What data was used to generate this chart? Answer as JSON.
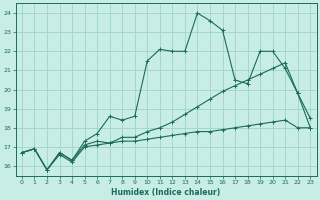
{
  "xlabel": "Humidex (Indice chaleur)",
  "bg_color": "#c8ece6",
  "grid_color": "#9dd4cc",
  "line_color": "#1a6b5a",
  "xlim": [
    -0.5,
    23.5
  ],
  "ylim": [
    15.5,
    24.5
  ],
  "xticks": [
    0,
    1,
    2,
    3,
    4,
    5,
    6,
    7,
    8,
    9,
    10,
    11,
    12,
    13,
    14,
    15,
    16,
    17,
    18,
    19,
    20,
    21,
    22,
    23
  ],
  "yticks": [
    16,
    17,
    18,
    19,
    20,
    21,
    22,
    23,
    24
  ],
  "line1_x": [
    0,
    1,
    2,
    3,
    4,
    5,
    6,
    7,
    8,
    9,
    10,
    11,
    12,
    13,
    14,
    15,
    16,
    17,
    18,
    19,
    20,
    21,
    22,
    23
  ],
  "line1_y": [
    16.7,
    16.9,
    15.8,
    16.7,
    16.3,
    17.3,
    17.7,
    18.6,
    18.4,
    18.6,
    21.5,
    22.1,
    22.0,
    22.0,
    24.0,
    23.6,
    23.1,
    20.5,
    20.3,
    22.0,
    22.0,
    21.1,
    19.8,
    18.5
  ],
  "line2_x": [
    0,
    1,
    2,
    3,
    4,
    5,
    6,
    7,
    8,
    9,
    10,
    11,
    12,
    13,
    14,
    15,
    16,
    17,
    18,
    19,
    20,
    21,
    22,
    23
  ],
  "line2_y": [
    16.7,
    16.9,
    15.8,
    16.7,
    16.3,
    17.1,
    17.3,
    17.2,
    17.5,
    17.5,
    17.8,
    18.0,
    18.3,
    18.7,
    19.1,
    19.5,
    19.9,
    20.2,
    20.5,
    20.8,
    21.1,
    21.4,
    19.8,
    18.0
  ],
  "line3_x": [
    0,
    1,
    2,
    3,
    4,
    5,
    6,
    7,
    8,
    9,
    10,
    11,
    12,
    13,
    14,
    15,
    16,
    17,
    18,
    19,
    20,
    21,
    22,
    23
  ],
  "line3_y": [
    16.7,
    16.9,
    15.8,
    16.6,
    16.2,
    17.0,
    17.1,
    17.2,
    17.3,
    17.3,
    17.4,
    17.5,
    17.6,
    17.7,
    17.8,
    17.8,
    17.9,
    18.0,
    18.1,
    18.2,
    18.3,
    18.4,
    18.0,
    18.0
  ]
}
